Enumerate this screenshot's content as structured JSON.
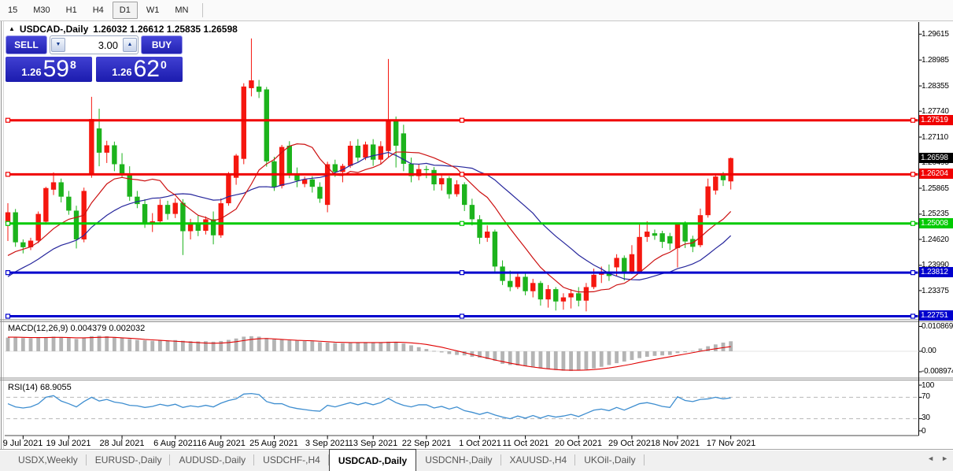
{
  "icons": {
    "collapse": "▲",
    "spin_up": "▲",
    "spin_down": "▼",
    "scroll_left": "◄",
    "scroll_right": "►"
  },
  "toolbar": {
    "timeframes": [
      {
        "label": "15",
        "active": false
      },
      {
        "label": "M30",
        "active": false
      },
      {
        "label": "H1",
        "active": false
      },
      {
        "label": "H4",
        "active": false
      },
      {
        "label": "D1",
        "active": true
      },
      {
        "label": "W1",
        "active": false
      },
      {
        "label": "MN",
        "active": false
      }
    ]
  },
  "chart_header": {
    "symbol": "USDCAD-,Daily",
    "ohlc_values": "1.26032 1.26612 1.25835 1.26598"
  },
  "trade_panel": {
    "sell_label": "SELL",
    "buy_label": "BUY",
    "volume": "3.00",
    "sell_price": {
      "prefix": "1.26",
      "big": "59",
      "sup": "8"
    },
    "buy_price": {
      "prefix": "1.26",
      "big": "62",
      "sup": "0"
    }
  },
  "price_axis": {
    "labels": [
      "1.29615",
      "1.28985",
      "1.28355",
      "1.27740",
      "1.27110",
      "1.26495",
      "1.25865",
      "1.25235",
      "1.24620",
      "1.23990",
      "1.23375"
    ],
    "badges": {
      "current": "1.26598",
      "resistance1": "1.27519",
      "resistance2": "1.26204",
      "support_green": "1.25008",
      "support_blue1": "1.23812",
      "support_blue2": "1.22751"
    }
  },
  "macd_panel": {
    "label": "MACD(12,26,9) 0.004379 0.002032",
    "axis": [
      "0.010869",
      "0.00",
      "-0.008974"
    ]
  },
  "rsi_panel": {
    "label": "RSI(14) 68.9055",
    "axis": [
      "100",
      "70",
      "30",
      "0"
    ]
  },
  "tab_bar": {
    "tabs": [
      {
        "label": "USDX,Weekly",
        "active": false
      },
      {
        "label": "EURUSD-,Daily",
        "active": false
      },
      {
        "label": "AUDUSD-,Daily",
        "active": false
      },
      {
        "label": "USDCHF-,H4",
        "active": false
      },
      {
        "label": "USDCAD-,Daily",
        "active": true
      },
      {
        "label": "USDCNH-,Daily",
        "active": false
      },
      {
        "label": "XAUUSD-,H4",
        "active": false
      },
      {
        "label": "UKOil-,Daily",
        "active": false
      }
    ]
  },
  "chart_data": {
    "type": "candlestick",
    "symbol": "USDCAD-",
    "period": "Daily",
    "current_ohlc": {
      "open": "1.26032",
      "high": "1.26612",
      "low": "1.25835",
      "close": "1.26598"
    },
    "bull_color": "#f5170f",
    "bear_color": "#1cb31c",
    "candles": [
      [
        1.2502,
        1.255,
        1.2458,
        1.2528
      ],
      [
        1.2528,
        1.2536,
        1.2444,
        1.2455
      ],
      [
        1.2455,
        1.2462,
        1.2428,
        1.2443
      ],
      [
        1.2443,
        1.2466,
        1.2436,
        1.2459
      ],
      [
        1.2459,
        1.253,
        1.2453,
        1.2524
      ],
      [
        1.2505,
        1.259,
        1.2498,
        1.2587
      ],
      [
        1.2583,
        1.2625,
        1.257,
        1.2601
      ],
      [
        1.2601,
        1.261,
        1.2552,
        1.2566
      ],
      [
        1.2566,
        1.258,
        1.2522,
        1.2532
      ],
      [
        1.2532,
        1.2544,
        1.244,
        1.2462
      ],
      [
        1.2462,
        1.2588,
        1.2455,
        1.258
      ],
      [
        1.262,
        1.2809,
        1.2612,
        1.2755
      ],
      [
        1.2732,
        1.278,
        1.264,
        1.2673
      ],
      [
        1.2673,
        1.2702,
        1.2648,
        1.2691
      ],
      [
        1.2691,
        1.27,
        1.2628,
        1.2645
      ],
      [
        1.2645,
        1.2672,
        1.2612,
        1.2622
      ],
      [
        1.2622,
        1.264,
        1.2556,
        1.2566
      ],
      [
        1.2566,
        1.258,
        1.2538,
        1.2548
      ],
      [
        1.2548,
        1.256,
        1.249,
        1.25
      ],
      [
        1.25,
        1.2526,
        1.248,
        1.2506
      ],
      [
        1.2506,
        1.256,
        1.25,
        1.2546
      ],
      [
        1.2546,
        1.2556,
        1.251,
        1.2524
      ],
      [
        1.2524,
        1.2562,
        1.2514,
        1.2551
      ],
      [
        1.2551,
        1.256,
        1.2424,
        1.2482
      ],
      [
        1.2482,
        1.2512,
        1.2462,
        1.2501
      ],
      [
        1.2501,
        1.252,
        1.247,
        1.2483
      ],
      [
        1.2483,
        1.2518,
        1.2474,
        1.2511
      ],
      [
        1.2511,
        1.253,
        1.245,
        1.2472
      ],
      [
        1.2472,
        1.2562,
        1.2466,
        1.255
      ],
      [
        1.255,
        1.2626,
        1.2544,
        1.262
      ],
      [
        1.2612,
        1.267,
        1.2595,
        1.2666
      ],
      [
        1.2658,
        1.2842,
        1.2645,
        1.2834
      ],
      [
        1.283,
        1.2951,
        1.281,
        1.2849
      ],
      [
        1.2834,
        1.285,
        1.2806,
        1.2821
      ],
      [
        1.2827,
        1.2833,
        1.2639,
        1.2652
      ],
      [
        1.2652,
        1.2663,
        1.258,
        1.259
      ],
      [
        1.2592,
        1.2692,
        1.2586,
        1.2687
      ],
      [
        1.269,
        1.2701,
        1.2611,
        1.2621
      ],
      [
        1.2621,
        1.2637,
        1.2589,
        1.2605
      ],
      [
        1.2597,
        1.2615,
        1.2589,
        1.2608
      ],
      [
        1.2608,
        1.2616,
        1.2576,
        1.259
      ],
      [
        1.259,
        1.2601,
        1.2551,
        1.2561
      ],
      [
        1.2546,
        1.2651,
        1.2528,
        1.2645
      ],
      [
        1.2645,
        1.2656,
        1.2614,
        1.2626
      ],
      [
        1.2626,
        1.2646,
        1.2601,
        1.2641
      ],
      [
        1.2641,
        1.2701,
        1.2636,
        1.269
      ],
      [
        1.269,
        1.2706,
        1.2651,
        1.2661
      ],
      [
        1.2661,
        1.27,
        1.2655,
        1.2693
      ],
      [
        1.2693,
        1.2706,
        1.2641,
        1.2656
      ],
      [
        1.2656,
        1.2701,
        1.2646,
        1.2689
      ],
      [
        1.2677,
        1.2901,
        1.2661,
        1.2754
      ],
      [
        1.2754,
        1.2761,
        1.2637,
        1.269
      ],
      [
        1.272,
        1.2741,
        1.2628,
        1.2646
      ],
      [
        1.2646,
        1.2661,
        1.2601,
        1.2616
      ],
      [
        1.2616,
        1.2646,
        1.2606,
        1.2633
      ],
      [
        1.2633,
        1.2641,
        1.2611,
        1.2631
      ],
      [
        1.2631,
        1.2638,
        1.2581,
        1.2596
      ],
      [
        1.2596,
        1.2621,
        1.2581,
        1.2611
      ],
      [
        1.2611,
        1.2616,
        1.2561,
        1.2572
      ],
      [
        1.2572,
        1.2606,
        1.2566,
        1.2596
      ],
      [
        1.2596,
        1.2601,
        1.2531,
        1.2546
      ],
      [
        1.2546,
        1.2561,
        1.2496,
        1.2511
      ],
      [
        1.2511,
        1.2521,
        1.2451,
        1.2466
      ],
      [
        1.2466,
        1.2496,
        1.2456,
        1.2481
      ],
      [
        1.2481,
        1.2486,
        1.2381,
        1.2396
      ],
      [
        1.2396,
        1.2411,
        1.2351,
        1.2361
      ],
      [
        1.2361,
        1.2386,
        1.2336,
        1.2346
      ],
      [
        1.2346,
        1.2381,
        1.2341,
        1.2371
      ],
      [
        1.2371,
        1.2379,
        1.2326,
        1.2336
      ],
      [
        1.2336,
        1.2366,
        1.2321,
        1.2356
      ],
      [
        1.2356,
        1.2361,
        1.2301,
        1.2316
      ],
      [
        1.2316,
        1.2351,
        1.2296,
        1.2341
      ],
      [
        1.2341,
        1.2346,
        1.2289,
        1.2311
      ],
      [
        1.2311,
        1.2331,
        1.2291,
        1.2321
      ],
      [
        1.2321,
        1.2341,
        1.2294,
        1.2331
      ],
      [
        1.2331,
        1.2346,
        1.2299,
        1.2313
      ],
      [
        1.2313,
        1.2356,
        1.2287,
        1.2346
      ],
      [
        1.2346,
        1.2391,
        1.2341,
        1.2376
      ],
      [
        1.2376,
        1.2396,
        1.2356,
        1.2383
      ],
      [
        1.2383,
        1.2401,
        1.2361,
        1.2373
      ],
      [
        1.2394,
        1.2426,
        1.2372,
        1.2417
      ],
      [
        1.2417,
        1.2423,
        1.2362,
        1.2381
      ],
      [
        1.2381,
        1.2448,
        1.2378,
        1.2426
      ],
      [
        1.2381,
        1.25,
        1.2378,
        1.2468
      ],
      [
        1.2468,
        1.2506,
        1.2456,
        1.2481
      ],
      [
        1.2477,
        1.2486,
        1.2461,
        1.2471
      ],
      [
        1.2477,
        1.2483,
        1.2441,
        1.2456
      ],
      [
        1.247,
        1.2478,
        1.2436,
        1.2452
      ],
      [
        1.2441,
        1.2503,
        1.2394,
        1.2499
      ],
      [
        1.2499,
        1.2506,
        1.2441,
        1.2457
      ],
      [
        1.2463,
        1.2471,
        1.2431,
        1.2444
      ],
      [
        1.2448,
        1.2537,
        1.2443,
        1.2521
      ],
      [
        1.2521,
        1.261,
        1.2515,
        1.2591
      ],
      [
        1.2581,
        1.2622,
        1.2571,
        1.2615
      ],
      [
        1.2618,
        1.2626,
        1.2592,
        1.2606
      ],
      [
        1.26032,
        1.26612,
        1.25835,
        1.26598
      ]
    ],
    "x_tick_dates": [
      {
        "label": "9 Jul 2021",
        "bar": 2
      },
      {
        "label": "19 Jul 2021",
        "bar": 8
      },
      {
        "label": "28 Jul 2021",
        "bar": 15
      },
      {
        "label": "6 Aug 2021",
        "bar": 22
      },
      {
        "label": "16 Aug 2021",
        "bar": 28
      },
      {
        "label": "25 Aug 2021",
        "bar": 35
      },
      {
        "label": "3 Sep 2021",
        "bar": 42
      },
      {
        "label": "13 Sep 2021",
        "bar": 48
      },
      {
        "label": "22 Sep 2021",
        "bar": 55
      },
      {
        "label": "1 Oct 2021",
        "bar": 62
      },
      {
        "label": "11 Oct 2021",
        "bar": 68
      },
      {
        "label": "20 Oct 2021",
        "bar": 75
      },
      {
        "label": "29 Oct 2021",
        "bar": 82
      },
      {
        "label": "8 Nov 2021",
        "bar": 88
      },
      {
        "label": "17 Nov 2021",
        "bar": 95
      }
    ],
    "hlines": [
      {
        "price": 1.27519,
        "label": "1.27519",
        "color": "#f00000"
      },
      {
        "price": 1.26204,
        "label": "1.26204",
        "color": "#f00000"
      },
      {
        "price": 1.25008,
        "label": "1.25008",
        "color": "#00ca00"
      },
      {
        "price": 1.23812,
        "label": "1.23812",
        "color": "#0000cd"
      },
      {
        "price": 1.22751,
        "label": "1.22751",
        "color": "#0000cd"
      }
    ],
    "current_price": {
      "value": 1.26598,
      "label": "1.26598"
    },
    "moving_averages": {
      "fast": {
        "period": 10,
        "color": "#cc1111"
      },
      "slow": {
        "period": 20,
        "color": "#26269c"
      },
      "warmup_closes": [
        1.219,
        1.2215,
        1.2245,
        1.227,
        1.23,
        1.233,
        1.236,
        1.239,
        1.2415,
        1.233,
        1.2345,
        1.236,
        1.2385,
        1.24,
        1.241,
        1.2425,
        1.2435,
        1.244,
        1.243,
        1.2415
      ]
    },
    "macd": {
      "params": "12,26,9",
      "main_value": "0.004379",
      "signal_value": "0.002032",
      "hist_color": "#b4b4b4",
      "signal_color": "#e00000",
      "histogram": [
        0.006,
        0.0061,
        0.0058,
        0.0057,
        0.0059,
        0.0062,
        0.0064,
        0.0062,
        0.0058,
        0.0054,
        0.0058,
        0.0066,
        0.0068,
        0.0066,
        0.0062,
        0.0058,
        0.0054,
        0.005,
        0.0048,
        0.0046,
        0.0048,
        0.0047,
        0.0049,
        0.0046,
        0.0044,
        0.0043,
        0.0044,
        0.0042,
        0.0045,
        0.005,
        0.0056,
        0.0064,
        0.0066,
        0.0064,
        0.0058,
        0.0052,
        0.005,
        0.0048,
        0.0046,
        0.0045,
        0.0044,
        0.004,
        0.0038,
        0.0036,
        0.0035,
        0.0036,
        0.0038,
        0.004,
        0.0038,
        0.004,
        0.0042,
        0.004,
        0.0034,
        0.0026,
        0.0018,
        0.001,
        0.0002,
        -0.0005,
        -0.0012,
        -0.0016,
        -0.0018,
        -0.0024,
        -0.0028,
        -0.0034,
        -0.0042,
        -0.0055,
        -0.006,
        -0.0062,
        -0.0065,
        -0.007,
        -0.0075,
        -0.0078,
        -0.0082,
        -0.0085,
        -0.0086,
        -0.0083,
        -0.008,
        -0.0075,
        -0.0068,
        -0.006,
        -0.0052,
        -0.0045,
        -0.0038,
        -0.003,
        -0.0024,
        -0.002,
        -0.0018,
        -0.0016,
        -0.0008,
        -0.0004,
        0.0002,
        0.0012,
        0.0022,
        0.003,
        0.0038,
        0.004379
      ],
      "signal": [
        0.0062,
        0.0062,
        0.0061,
        0.006,
        0.006,
        0.006,
        0.0061,
        0.0061,
        0.006,
        0.0059,
        0.0059,
        0.006,
        0.0061,
        0.0062,
        0.0061,
        0.0059,
        0.0057,
        0.0055,
        0.0052,
        0.005,
        0.0048,
        0.0046,
        0.0044,
        0.0042,
        0.004,
        0.0038,
        0.0036,
        0.0035,
        0.0036,
        0.0038,
        0.0042,
        0.0047,
        0.0052,
        0.0055,
        0.0056,
        0.0054,
        0.0052,
        0.005,
        0.0048,
        0.0047,
        0.0046,
        0.0044,
        0.0042,
        0.004,
        0.0039,
        0.0038,
        0.0038,
        0.0038,
        0.0038,
        0.0038,
        0.0039,
        0.004,
        0.0039,
        0.0037,
        0.0034,
        0.003,
        0.0024,
        0.0018,
        0.001,
        0.0002,
        -0.0006,
        -0.0014,
        -0.0022,
        -0.003,
        -0.0038,
        -0.0045,
        -0.0052,
        -0.0058,
        -0.0064,
        -0.0069,
        -0.0073,
        -0.0077,
        -0.008,
        -0.0082,
        -0.0083,
        -0.0083,
        -0.0082,
        -0.008,
        -0.0077,
        -0.0073,
        -0.0068,
        -0.0062,
        -0.0056,
        -0.0049,
        -0.0042,
        -0.0036,
        -0.003,
        -0.0024,
        -0.0018,
        -0.0012,
        -0.0006,
        0.0,
        0.0006,
        0.0011,
        0.0016,
        0.002032
      ]
    },
    "rsi": {
      "period": 14,
      "value": "68.9055",
      "color": "#3e8ed0",
      "levels": [
        70,
        30
      ],
      "series": [
        58,
        52,
        50,
        52,
        58,
        70,
        73,
        63,
        58,
        52,
        62,
        70,
        63,
        66,
        61,
        59,
        55,
        54,
        51,
        53,
        57,
        54,
        57,
        51,
        54,
        52,
        55,
        52,
        59,
        64,
        67,
        76,
        77,
        75,
        62,
        58,
        58,
        52,
        49,
        47,
        45,
        44,
        55,
        52,
        56,
        60,
        56,
        60,
        56,
        60,
        68,
        60,
        55,
        52,
        56,
        56,
        50,
        53,
        48,
        52,
        45,
        42,
        38,
        42,
        37,
        33,
        30,
        35,
        31,
        36,
        31,
        36,
        33,
        35,
        38,
        34,
        40,
        46,
        48,
        45,
        51,
        46,
        52,
        58,
        60,
        57,
        53,
        51,
        71,
        64,
        62,
        66,
        67,
        70,
        67,
        68.9
      ]
    }
  }
}
